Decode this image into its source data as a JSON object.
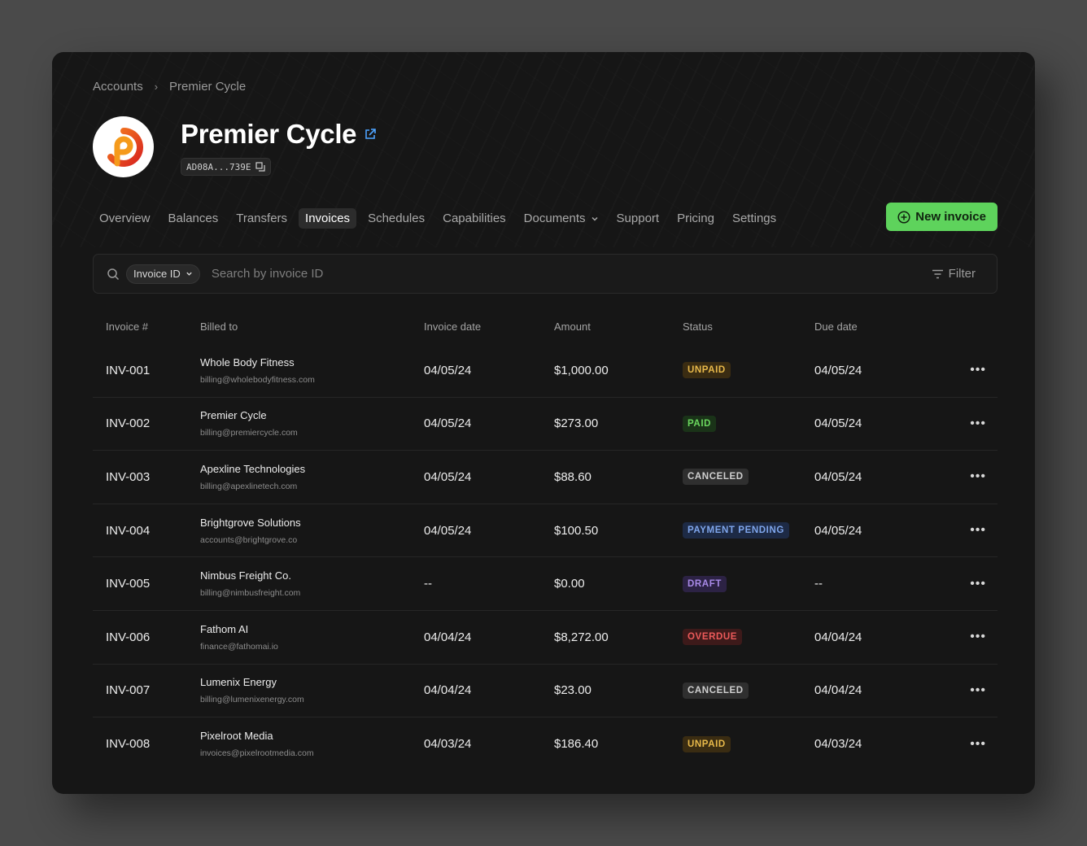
{
  "breadcrumb": {
    "parent": "Accounts",
    "current": "Premier Cycle"
  },
  "account": {
    "name": "Premier Cycle",
    "id_short": "AD08A...739E"
  },
  "tabs": [
    {
      "label": "Overview",
      "active": false
    },
    {
      "label": "Balances",
      "active": false
    },
    {
      "label": "Transfers",
      "active": false
    },
    {
      "label": "Invoices",
      "active": true
    },
    {
      "label": "Schedules",
      "active": false
    },
    {
      "label": "Capabilities",
      "active": false
    },
    {
      "label": "Documents",
      "active": false,
      "dropdown": true
    },
    {
      "label": "Support",
      "active": false
    },
    {
      "label": "Pricing",
      "active": false
    },
    {
      "label": "Settings",
      "active": false
    }
  ],
  "actions": {
    "new_invoice": "New invoice"
  },
  "search": {
    "field_select": "Invoice ID",
    "placeholder": "Search by invoice ID",
    "filter_label": "Filter"
  },
  "table": {
    "headers": [
      "Invoice #",
      "Billed to",
      "Invoice date",
      "Amount",
      "Status",
      "Due date"
    ],
    "rows": [
      {
        "id": "INV-001",
        "name": "Whole Body Fitness",
        "email": "billing@wholebodyfitness.com",
        "date": "04/05/24",
        "amount": "$1,000.00",
        "status": "UNPAID",
        "due": "04/05/24"
      },
      {
        "id": "INV-002",
        "name": "Premier Cycle",
        "email": "billing@premiercycle.com",
        "date": "04/05/24",
        "amount": "$273.00",
        "status": "PAID",
        "due": "04/05/24"
      },
      {
        "id": "INV-003",
        "name": "Apexline Technologies",
        "email": "billing@apexlinetech.com",
        "date": "04/05/24",
        "amount": "$88.60",
        "status": "CANCELED",
        "due": "04/05/24"
      },
      {
        "id": "INV-004",
        "name": "Brightgrove Solutions",
        "email": "accounts@brightgrove.co",
        "date": "04/05/24",
        "amount": "$100.50",
        "status": "PAYMENT PENDING",
        "due": "04/05/24"
      },
      {
        "id": "INV-005",
        "name": "Nimbus Freight Co.",
        "email": "billing@nimbusfreight.com",
        "date": "--",
        "amount": "$0.00",
        "status": "DRAFT",
        "due": "--"
      },
      {
        "id": "INV-006",
        "name": "Fathom AI",
        "email": "finance@fathomai.io",
        "date": "04/04/24",
        "amount": "$8,272.00",
        "status": "OVERDUE",
        "due": "04/04/24"
      },
      {
        "id": "INV-007",
        "name": "Lumenix Energy",
        "email": "billing@lumenixenergy.com",
        "date": "04/04/24",
        "amount": "$23.00",
        "status": "CANCELED",
        "due": "04/04/24"
      },
      {
        "id": "INV-008",
        "name": "Pixelroot Media",
        "email": "invoices@pixelrootmedia.com",
        "date": "04/03/24",
        "amount": "$186.40",
        "status": "UNPAID",
        "due": "04/03/24"
      }
    ]
  },
  "status_colors": {
    "UNPAID": {
      "bg": "#3a2c12",
      "fg": "#e8b94a"
    },
    "PAID": {
      "bg": "#1a3318",
      "fg": "#6bd85f"
    },
    "CANCELED": {
      "bg": "#2f2f2f",
      "fg": "#cfcfcf"
    },
    "PAYMENT PENDING": {
      "bg": "#1d2a45",
      "fg": "#7fa6ec"
    },
    "DRAFT": {
      "bg": "#2c2244",
      "fg": "#a98ae8"
    },
    "OVERDUE": {
      "bg": "#3d1a1a",
      "fg": "#ec5a5a"
    }
  },
  "icons": {
    "logo": "premier-cycle-logo",
    "external": "external-link-icon",
    "copy": "copy-icon",
    "search": "search-icon",
    "chevron": "chevron-down-icon",
    "filter": "filter-icon",
    "add": "plus-circle-icon",
    "more": "more-horizontal-icon"
  },
  "accent_color": "#5ed35c"
}
